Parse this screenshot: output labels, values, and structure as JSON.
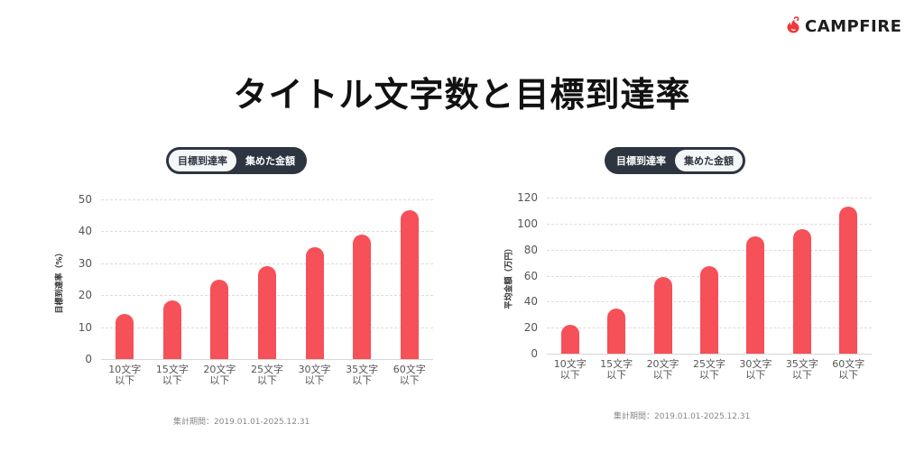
{
  "brand": {
    "name": "CAMPFIRE",
    "icon": "campfire-flame-icon",
    "color": "#f0393b"
  },
  "page_title": "タイトル文字数と目標到達率",
  "colors": {
    "bar": "#f65058",
    "toggle_bg": "#2d3540",
    "toggle_active_bg": "#f5f6f8"
  },
  "left_panel": {
    "toggle": {
      "options": [
        "目標到達率",
        "集めた金額"
      ],
      "active": 0
    },
    "footnote": "集計期間：2019.01.01-2025.12.31"
  },
  "right_panel": {
    "toggle": {
      "options": [
        "目標到達率",
        "集めた金額"
      ],
      "active": 1
    },
    "footnote": "集計期間：2019.01.01-2025.12.31"
  },
  "chart_data": [
    {
      "type": "bar",
      "title": "目標到達率",
      "categories": [
        "10文字以下",
        "15文字以下",
        "20文字以下",
        "25文字以下",
        "30文字以下",
        "35文字以下",
        "60文字以下"
      ],
      "category_lines": [
        [
          "10文字",
          "以下"
        ],
        [
          "15文字",
          "以下"
        ],
        [
          "20文字",
          "以下"
        ],
        [
          "25文字",
          "以下"
        ],
        [
          "30文字",
          "以下"
        ],
        [
          "35文字",
          "以下"
        ],
        [
          "60文字",
          "以下"
        ]
      ],
      "values": [
        14.2,
        18.4,
        24.8,
        29.2,
        35.1,
        39.0,
        46.6
      ],
      "xlabel": "",
      "ylabel": "目標到達率（%）",
      "ylim": [
        0,
        50
      ],
      "yticks": [
        0,
        10,
        20,
        30,
        40,
        50
      ],
      "grid": true,
      "legend": null
    },
    {
      "type": "bar",
      "title": "集めた金額",
      "categories": [
        "10文字以下",
        "15文字以下",
        "20文字以下",
        "25文字以下",
        "30文字以下",
        "35文字以下",
        "60文字以下"
      ],
      "category_lines": [
        [
          "10文字",
          "以下"
        ],
        [
          "15文字",
          "以下"
        ],
        [
          "20文字",
          "以下"
        ],
        [
          "25文字",
          "以下"
        ],
        [
          "30文字",
          "以下"
        ],
        [
          "35文字",
          "以下"
        ],
        [
          "60文字",
          "以下"
        ]
      ],
      "values": [
        22,
        35,
        59,
        67,
        90,
        96,
        113
      ],
      "xlabel": "",
      "ylabel": "平均金額（万円）",
      "ylim": [
        0,
        120
      ],
      "yticks": [
        0,
        20,
        40,
        60,
        80,
        100,
        120
      ],
      "grid": true,
      "legend": null
    }
  ]
}
